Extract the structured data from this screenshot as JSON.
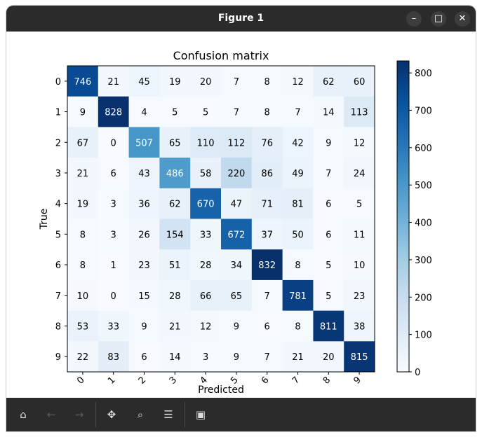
{
  "window": {
    "title": "Figure 1",
    "minimize_icon": "minimize-icon",
    "maximize_icon": "maximize-icon",
    "close_icon": "close-icon"
  },
  "toolbar": {
    "buttons": [
      {
        "name": "home-button",
        "icon": "home-icon",
        "glyph": "⌂",
        "enabled": true
      },
      {
        "name": "back-button",
        "icon": "arrow-left-icon",
        "glyph": "←",
        "enabled": false
      },
      {
        "name": "forward-button",
        "icon": "arrow-right-icon",
        "glyph": "→",
        "enabled": false
      },
      {
        "name": "pan-button",
        "icon": "move-icon",
        "glyph": "✥",
        "enabled": true
      },
      {
        "name": "zoom-button",
        "icon": "magnifier-icon",
        "glyph": "⌕",
        "enabled": true
      },
      {
        "name": "configure-button",
        "icon": "sliders-icon",
        "glyph": "☰",
        "enabled": true
      },
      {
        "name": "save-button",
        "icon": "floppy-disk-icon",
        "glyph": "▣",
        "enabled": true
      }
    ]
  },
  "chart_data": {
    "type": "heatmap",
    "title": "Confusion matrix",
    "xlabel": "Predicted",
    "ylabel": "True",
    "x_tick_labels": [
      "0",
      "1",
      "2",
      "3",
      "4",
      "5",
      "6",
      "7",
      "8",
      "9"
    ],
    "y_tick_labels": [
      "0",
      "1",
      "2",
      "3",
      "4",
      "5",
      "6",
      "7",
      "8",
      "9"
    ],
    "colormap": "Blues",
    "colorbar": {
      "min": 0,
      "max": 832,
      "ticks": [
        0,
        100,
        200,
        300,
        400,
        500,
        600,
        700,
        800
      ]
    },
    "matrix": [
      [
        746,
        21,
        45,
        19,
        20,
        7,
        8,
        12,
        62,
        60
      ],
      [
        9,
        828,
        4,
        5,
        5,
        7,
        8,
        7,
        14,
        113
      ],
      [
        67,
        0,
        507,
        65,
        110,
        112,
        76,
        42,
        9,
        12
      ],
      [
        21,
        6,
        43,
        486,
        58,
        220,
        86,
        49,
        7,
        24
      ],
      [
        19,
        3,
        36,
        62,
        670,
        47,
        71,
        81,
        6,
        5
      ],
      [
        8,
        3,
        26,
        154,
        33,
        672,
        37,
        50,
        6,
        11
      ],
      [
        8,
        1,
        23,
        51,
        28,
        34,
        832,
        8,
        5,
        10
      ],
      [
        10,
        0,
        15,
        28,
        66,
        65,
        7,
        781,
        5,
        23
      ],
      [
        53,
        33,
        9,
        21,
        12,
        9,
        6,
        8,
        811,
        38
      ],
      [
        22,
        83,
        6,
        14,
        3,
        9,
        7,
        21,
        20,
        815
      ]
    ]
  }
}
